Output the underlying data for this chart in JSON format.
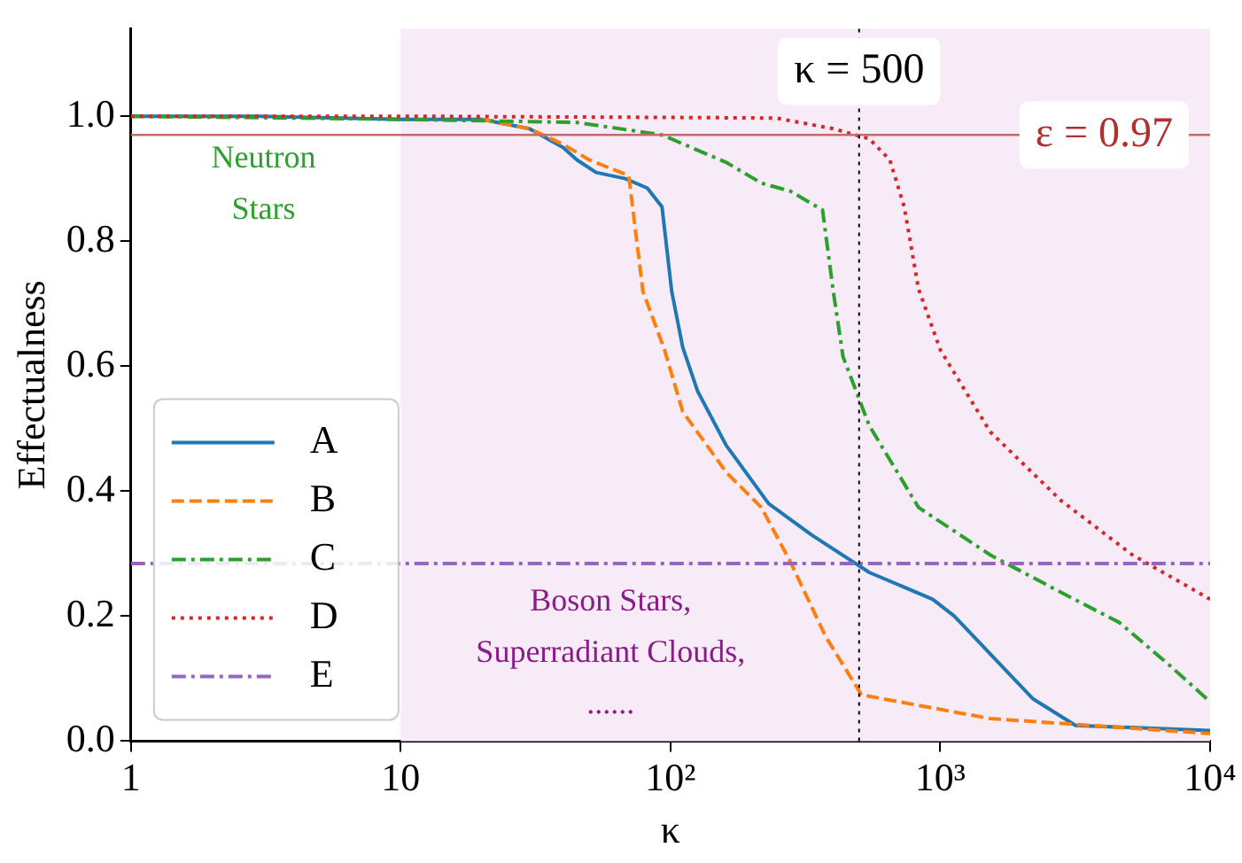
{
  "chart_data": {
    "type": "line",
    "xlabel": "κ",
    "ylabel": "Effectualness",
    "log": "x",
    "xlim": [
      1,
      10000
    ],
    "xticks": [
      1,
      10,
      {
        "value": 100,
        "label": "10²"
      },
      {
        "value": 1000,
        "label": "10³"
      },
      {
        "value": 10000,
        "label": "10⁴"
      }
    ],
    "ylim": [
      0,
      1.14
    ],
    "yticks": [
      {
        "value": 0,
        "label": "0.0"
      },
      {
        "value": 0.2,
        "label": "0.2"
      },
      {
        "value": 0.4,
        "label": "0.4"
      },
      {
        "value": 0.6,
        "label": "0.6"
      },
      {
        "value": 0.8,
        "label": "0.8"
      },
      {
        "value": 1,
        "label": "1.0"
      }
    ],
    "grid": false,
    "legend": "bottom left",
    "marker": "none",
    "series": [
      {
        "name": "A",
        "color": "#1f77b4",
        "line_style": "solid",
        "x": [
          1,
          3,
          10,
          20,
          30,
          40,
          45,
          53,
          68,
          82,
          93,
          101,
          111,
          126,
          161,
          231,
          333,
          545,
          937,
          1127,
          2200,
          3170,
          10000
        ],
        "values": [
          1.0,
          1.0,
          0.995,
          0.995,
          0.98,
          0.95,
          0.93,
          0.91,
          0.9,
          0.885,
          0.855,
          0.72,
          0.63,
          0.56,
          0.473,
          0.38,
          0.33,
          0.27,
          0.227,
          0.2,
          0.068,
          0.025,
          0.017
        ]
      },
      {
        "name": "B",
        "color": "#ff7f0e",
        "line_style": "dashed",
        "x": [
          20,
          30,
          40,
          50,
          70,
          79,
          95,
          111,
          161,
          217,
          278,
          376,
          510,
          1530,
          10000
        ],
        "values": [
          0.995,
          0.98,
          0.955,
          0.93,
          0.905,
          0.72,
          0.626,
          0.527,
          0.43,
          0.374,
          0.287,
          0.167,
          0.074,
          0.036,
          0.012
        ]
      },
      {
        "name": "C",
        "color": "#2ca02c",
        "line_style": "dashdot",
        "x": [
          1,
          10,
          45,
          93,
          161,
          217,
          278,
          366,
          401,
          436,
          545,
          830,
          1530,
          2800,
          4600,
          7000,
          10000
        ],
        "values": [
          1.0,
          0.995,
          0.99,
          0.97,
          0.926,
          0.893,
          0.88,
          0.85,
          0.72,
          0.615,
          0.505,
          0.374,
          0.298,
          0.238,
          0.19,
          0.123,
          0.063
        ]
      },
      {
        "name": "D",
        "color": "#d62728",
        "line_style": "dotted",
        "x": [
          1,
          10,
          100,
          246,
          401,
          545,
          650,
          735,
          830,
          1000,
          1530,
          2800,
          5150,
          10000
        ],
        "values": [
          1.0,
          1.0,
          0.998,
          0.997,
          0.98,
          0.964,
          0.93,
          0.855,
          0.724,
          0.626,
          0.495,
          0.385,
          0.298,
          0.227
        ]
      },
      {
        "name": "E",
        "color": "#9467bd",
        "line_style": "dashdot",
        "x": [
          1,
          10000
        ],
        "values": [
          0.284,
          0.284
        ]
      }
    ],
    "ref_lines": [
      {
        "axis": "y",
        "value": 0.97,
        "label": "ε = 0.97",
        "color": "#c46a6a",
        "line_style": "solid"
      },
      {
        "axis": "x",
        "value": 500,
        "label": "κ = 500",
        "color": "#000000",
        "line_style": "dotted"
      }
    ],
    "bands": [
      {
        "axis": "x",
        "from": 10,
        "to": 10000,
        "color": "#f7ebf7"
      }
    ],
    "annotations": [
      "Neutron\nStars",
      "Boson Stars,\nSuperradiant Clouds,\n......"
    ]
  }
}
